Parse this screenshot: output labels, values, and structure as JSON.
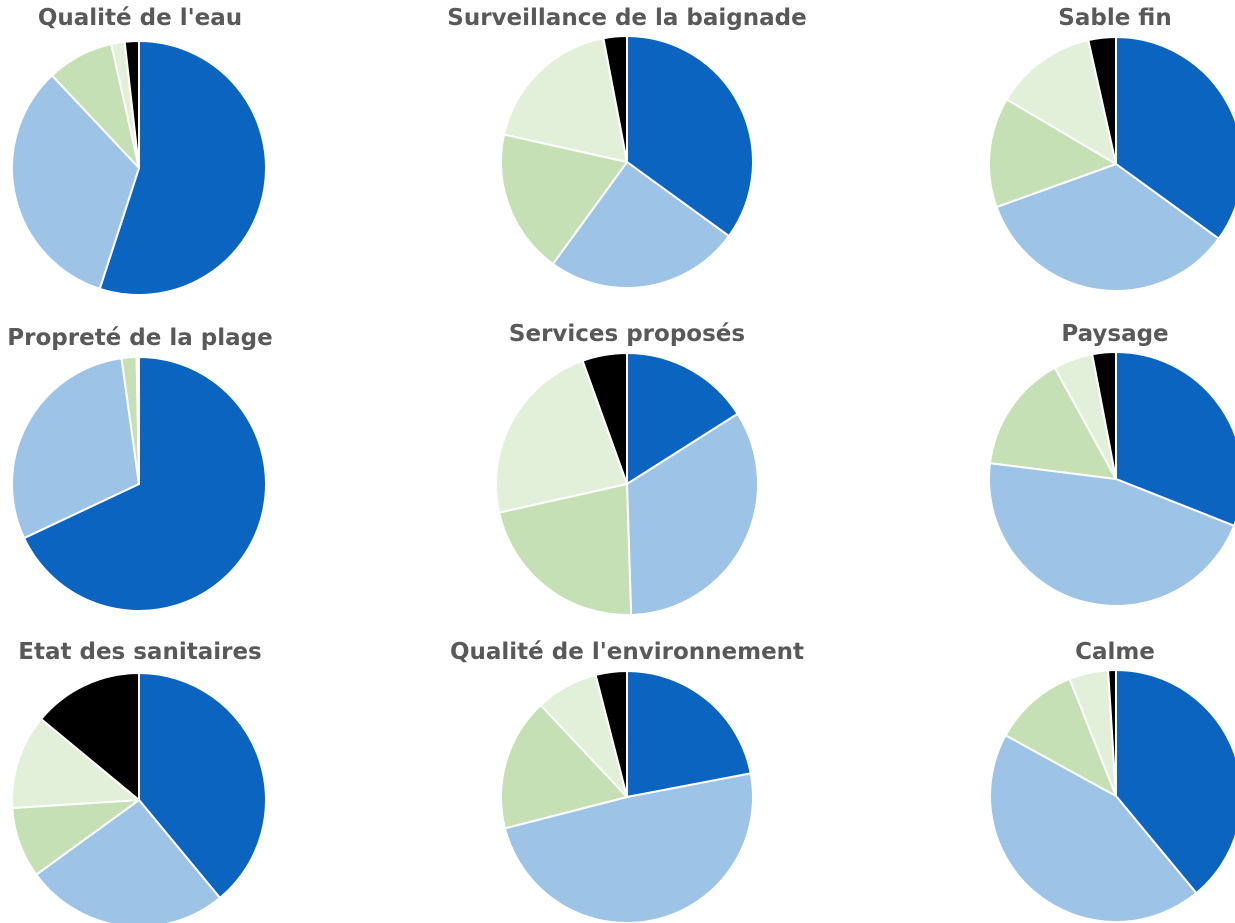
{
  "palette": [
    "#0a64c0",
    "#9dc3e6",
    "#c5e0b4",
    "#e2f0d9",
    "#000000"
  ],
  "chart_data": [
    {
      "type": "pie",
      "title": "Qualité de l'eau",
      "values": [
        55,
        33,
        8.5,
        1.7,
        1.8
      ]
    },
    {
      "type": "pie",
      "title": "Surveillance de la baignade",
      "values": [
        35,
        25,
        18.5,
        18.5,
        3
      ]
    },
    {
      "type": "pie",
      "title": "Sable fin",
      "values": [
        35,
        34.5,
        14,
        13,
        3.5
      ]
    },
    {
      "type": "pie",
      "title": "Propreté de la plage",
      "values": [
        68,
        29.8,
        1.9,
        0.2,
        0.1
      ]
    },
    {
      "type": "pie",
      "title": "Services proposés",
      "values": [
        16,
        33.5,
        22,
        23,
        5.5
      ]
    },
    {
      "type": "pie",
      "title": "Paysage",
      "values": [
        31,
        46,
        15,
        5,
        3
      ]
    },
    {
      "type": "pie",
      "title": "Etat des sanitaires",
      "values": [
        39,
        26,
        9,
        12,
        14
      ]
    },
    {
      "type": "pie",
      "title": "Qualité de l'environnement",
      "values": [
        22,
        49,
        17,
        8,
        4
      ]
    },
    {
      "type": "pie",
      "title": "Calme",
      "values": [
        39,
        44,
        11,
        5,
        1
      ]
    }
  ]
}
